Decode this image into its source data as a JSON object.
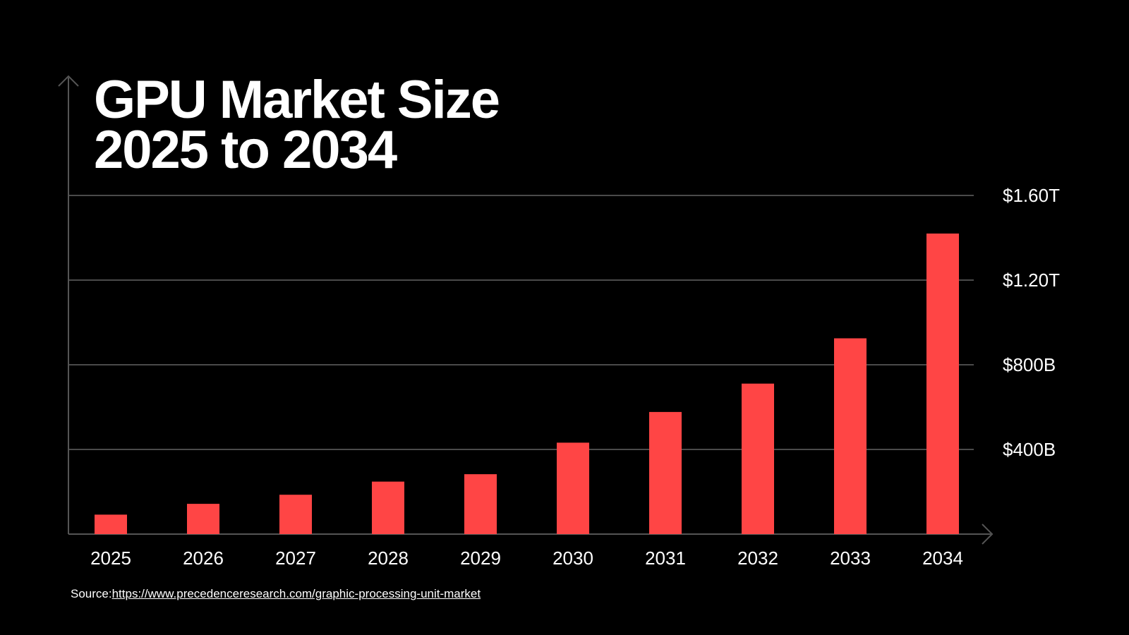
{
  "colors": {
    "background": "#000000",
    "bar": "#ff4545",
    "gridline": "#4a4a4a",
    "axis": "#555555",
    "text": "#ffffff"
  },
  "chart_data": {
    "type": "bar",
    "title_lines": [
      "GPU Market Size",
      "2025 to 2034"
    ],
    "xlabel": "",
    "ylabel": "",
    "categories": [
      "2025",
      "2026",
      "2027",
      "2028",
      "2029",
      "2030",
      "2031",
      "2032",
      "2033",
      "2034"
    ],
    "values": [
      92,
      143,
      186,
      248,
      283,
      432,
      577,
      711,
      925,
      1420
    ],
    "value_unit": "billion USD",
    "ylim": [
      0,
      1600
    ],
    "y_ticks": [
      {
        "value": 400,
        "label": "$400B"
      },
      {
        "value": 800,
        "label": "$800B"
      },
      {
        "value": 1200,
        "label": "$1.20T"
      },
      {
        "value": 1600,
        "label": "$1.60T"
      }
    ],
    "grid": true,
    "y_axis_position": "right",
    "legend": "none"
  },
  "source": {
    "prefix": "Source:",
    "url_text": "https://www.precedenceresearch.com/graphic-processing-unit-market"
  }
}
